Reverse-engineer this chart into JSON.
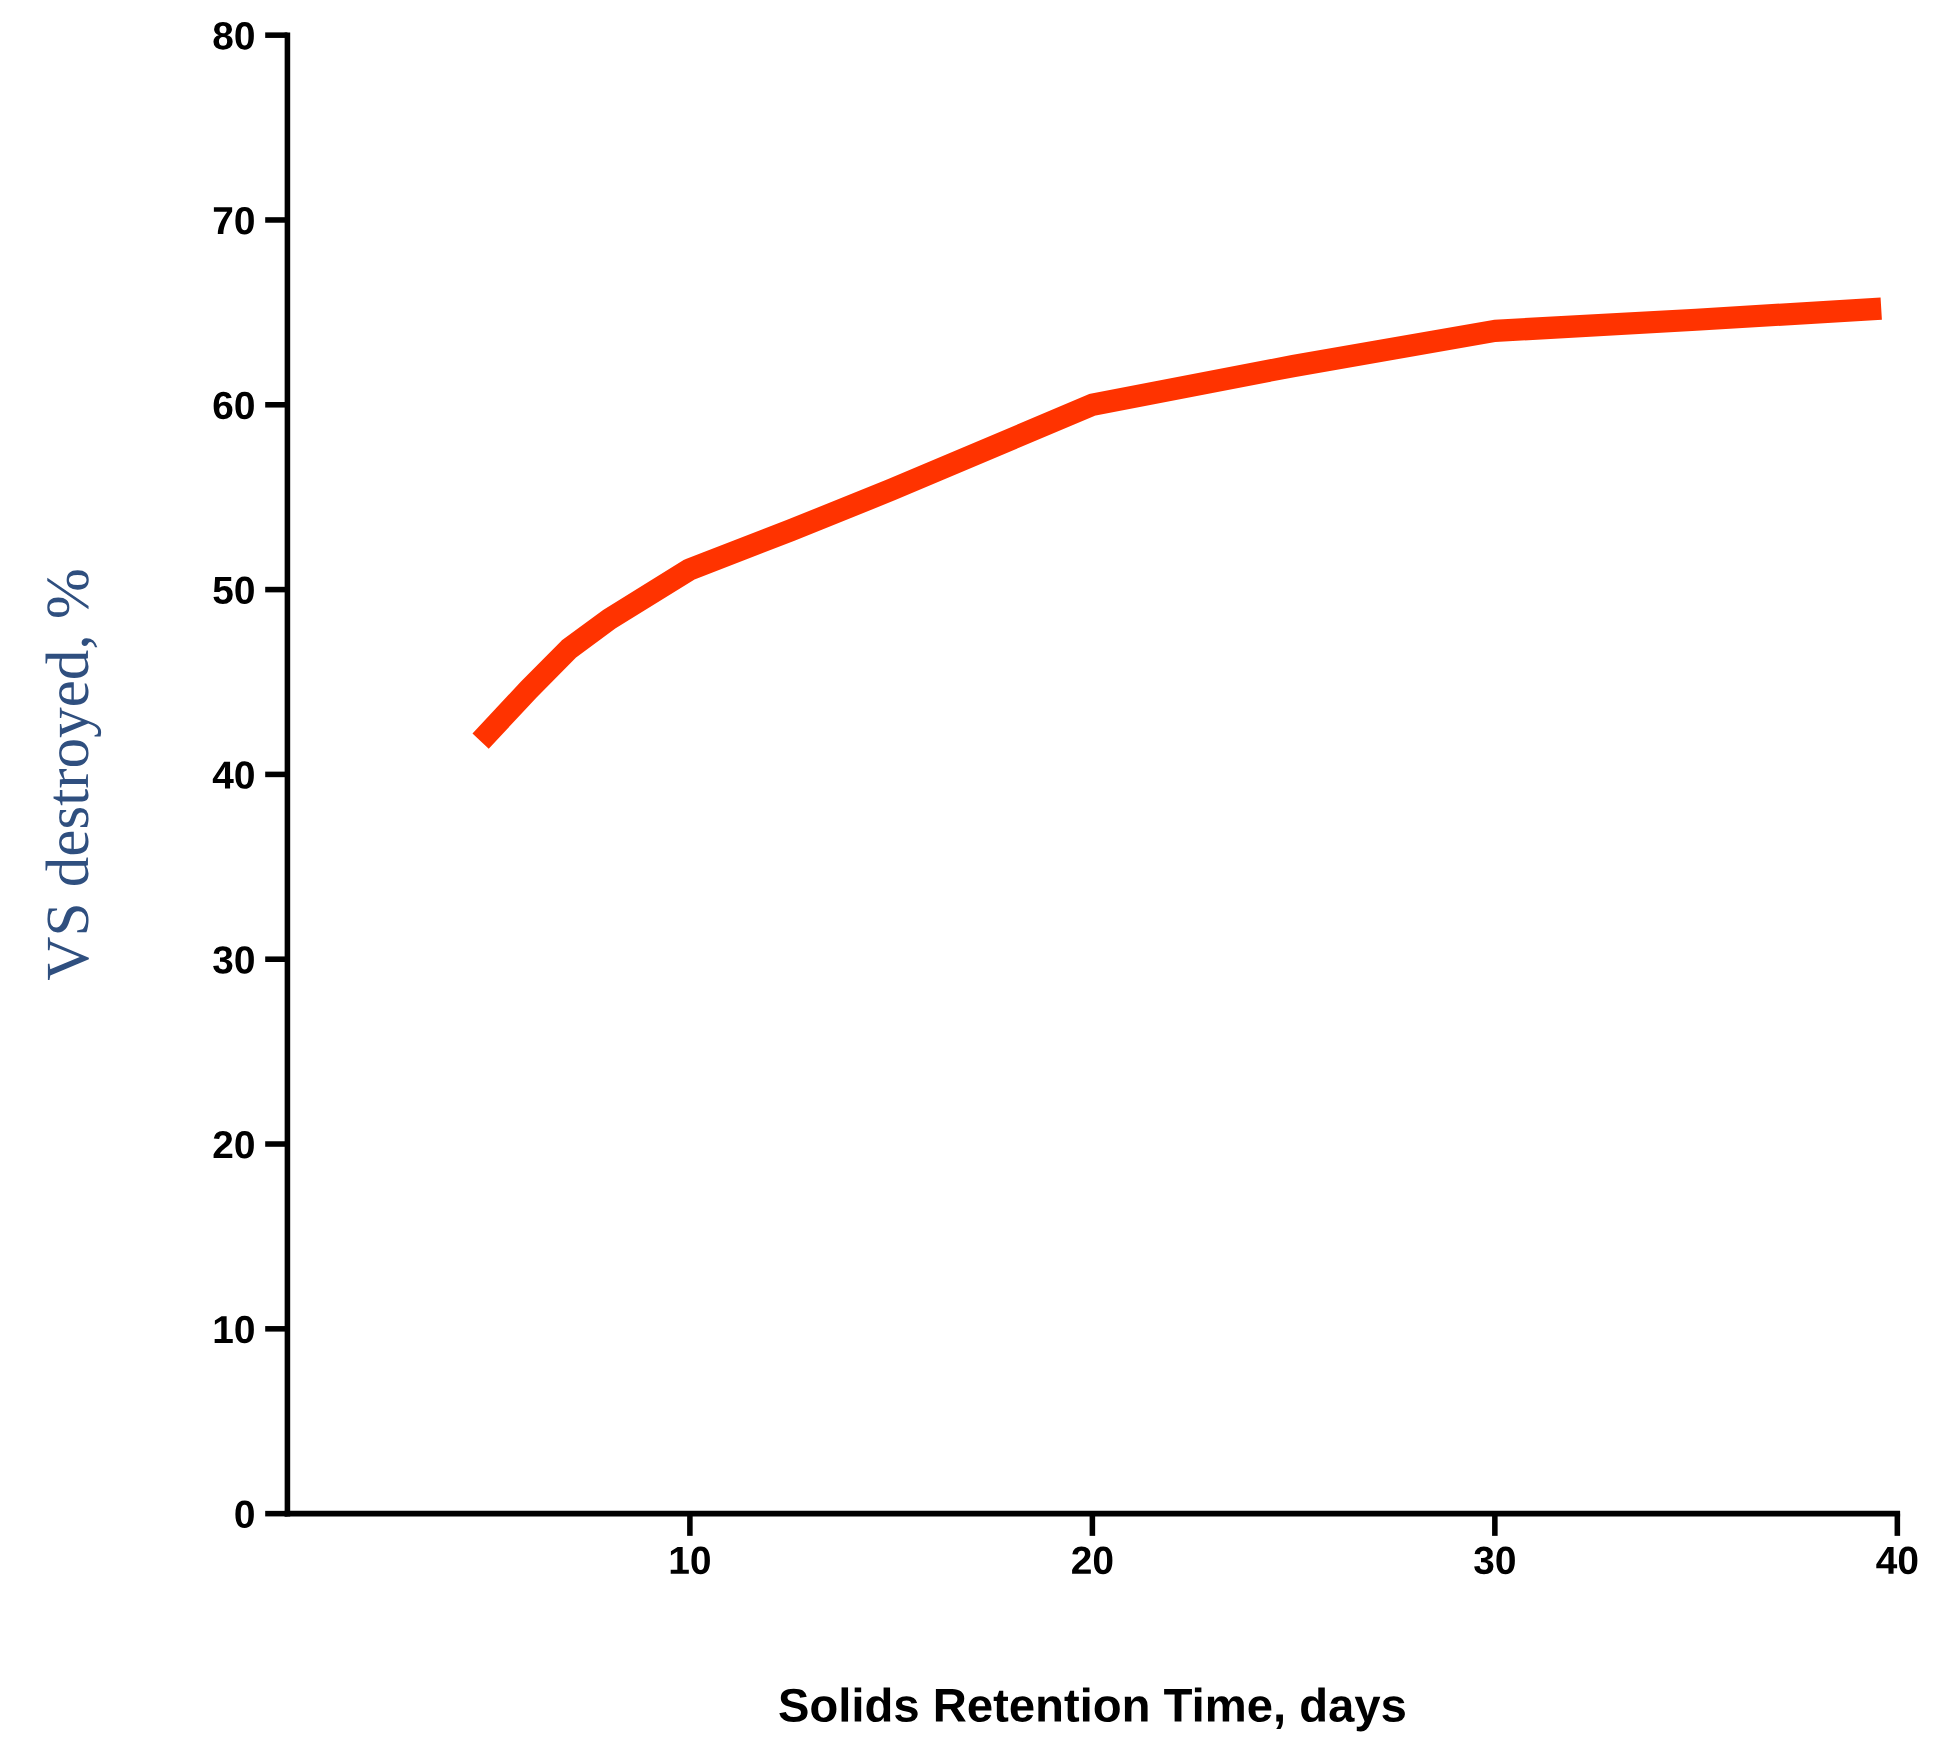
{
  "chart_data": {
    "type": "line",
    "xlabel": "Solids Retention Time, days",
    "ylabel": "VS destroyed, %",
    "x": [
      4.8,
      6,
      7,
      8,
      10,
      12.5,
      15,
      20,
      25,
      30,
      35,
      39.6
    ],
    "series": [
      {
        "color": "#ff3300",
        "values": [
          41.8,
          44.6,
          46.8,
          48.4,
          51.1,
          53.2,
          55.4,
          60,
          62.1,
          64,
          64.6,
          65.2
        ]
      }
    ],
    "xlim": [
      0,
      40
    ],
    "xticks": [
      10,
      20,
      30,
      40
    ],
    "ylim": [
      0,
      80
    ],
    "yticks": [
      0,
      10,
      20,
      30,
      40,
      50,
      60,
      70,
      80
    ],
    "grid": false,
    "legend": false,
    "marker": "none",
    "line_style": "solid"
  }
}
